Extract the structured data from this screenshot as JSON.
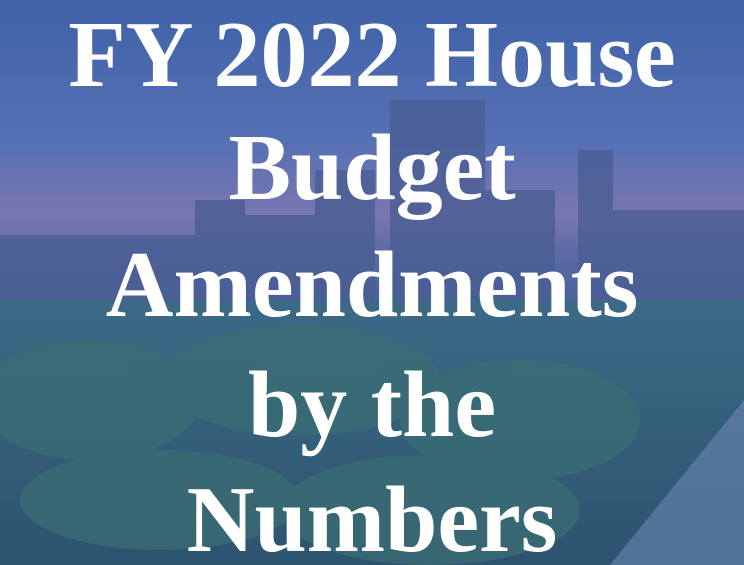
{
  "title_lines": [
    "FY 2022 House",
    "Budget",
    "Amendments",
    "by the",
    "Numbers"
  ]
}
